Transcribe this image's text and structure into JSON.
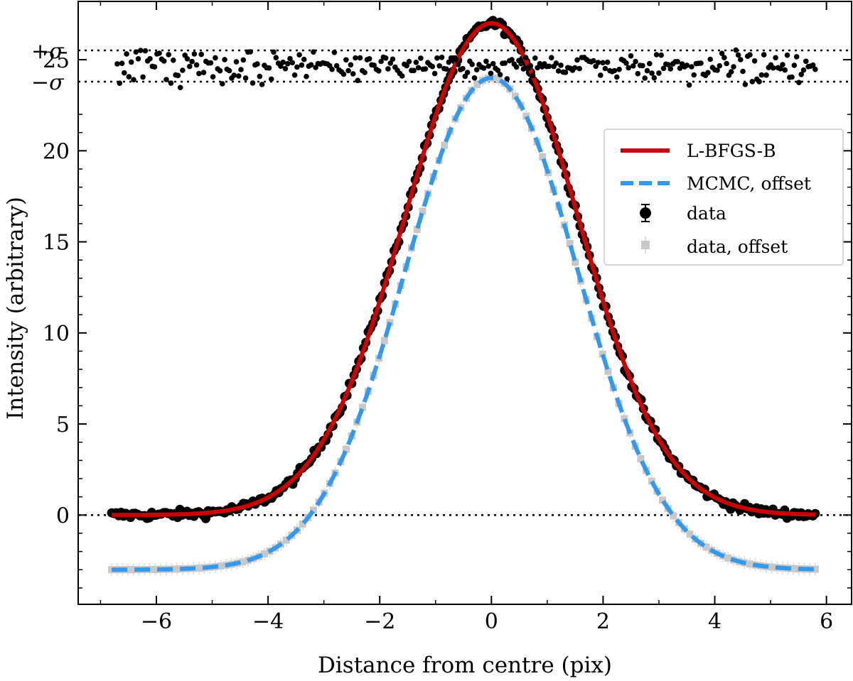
{
  "chart_data": {
    "type": "scatter",
    "xlabel": "Distance from centre (pix)",
    "ylabel": "Intensity (arbitrary)",
    "xlim": [
      -7.4,
      6.45
    ],
    "ylim": [
      -4.9,
      28.2
    ],
    "x_ticks": [
      -6,
      -4,
      -2,
      0,
      2,
      4,
      6
    ],
    "y_ticks": [
      0,
      5,
      10,
      15,
      20,
      25
    ],
    "x_tick_labels": [
      "−6",
      "−4",
      "−2",
      "0",
      "2",
      "4",
      "6"
    ],
    "y_tick_labels": [
      "0",
      "5",
      "10",
      "15",
      "20",
      "25"
    ],
    "zero_line": 0,
    "x_range": [
      -6.8,
      5.8
    ],
    "series": [
      {
        "name": "L-BFGS-B",
        "kind": "line",
        "color": "#cc0000",
        "amplitude": 27,
        "center": 0,
        "sigma": 1.55,
        "baseline": 0
      },
      {
        "name": "MCMC, offset",
        "kind": "dashed-line",
        "color": "#3399ee",
        "amplitude": 27,
        "center": 0,
        "sigma": 1.55,
        "baseline": -3
      },
      {
        "name": "data",
        "kind": "points",
        "marker": "circle",
        "color": "#000000"
      },
      {
        "name": "data, offset",
        "kind": "points",
        "marker": "square",
        "color": "#c8c8c8"
      }
    ],
    "residual_panel": {
      "labels": [
        "+σ",
        "−σ"
      ],
      "x_range": [
        -6.7,
        5.8
      ],
      "point_count": 300
    },
    "legend": {
      "position": "right"
    },
    "grid": false
  }
}
